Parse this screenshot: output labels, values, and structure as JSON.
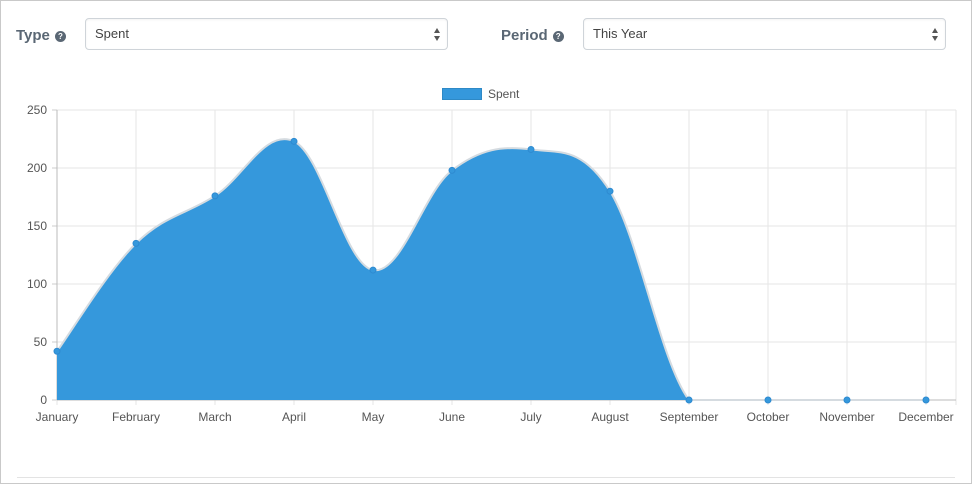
{
  "filters": {
    "type": {
      "label": "Type",
      "value": "Spent"
    },
    "period": {
      "label": "Period",
      "value": "This Year"
    }
  },
  "colors": {
    "series_fill": "#3598dc",
    "series_line": "#2e8ad0",
    "grid": "#e6e6e6",
    "text": "#555555",
    "label": "#5a6774"
  },
  "icons": {
    "help": "question-circle-icon",
    "select": "select-arrows-icon"
  },
  "chart_data": {
    "type": "area",
    "categories": [
      "January",
      "February",
      "March",
      "April",
      "May",
      "June",
      "July",
      "August",
      "September",
      "October",
      "November",
      "December"
    ],
    "series": [
      {
        "name": "Spent",
        "values": [
          42,
          135,
          176,
          223,
          112,
          198,
          216,
          180,
          0,
          0,
          0,
          0
        ]
      }
    ],
    "ylim": [
      0,
      250
    ],
    "yticks": [
      0,
      50,
      100,
      150,
      200,
      250
    ],
    "grid": true,
    "legend": "top-center"
  }
}
